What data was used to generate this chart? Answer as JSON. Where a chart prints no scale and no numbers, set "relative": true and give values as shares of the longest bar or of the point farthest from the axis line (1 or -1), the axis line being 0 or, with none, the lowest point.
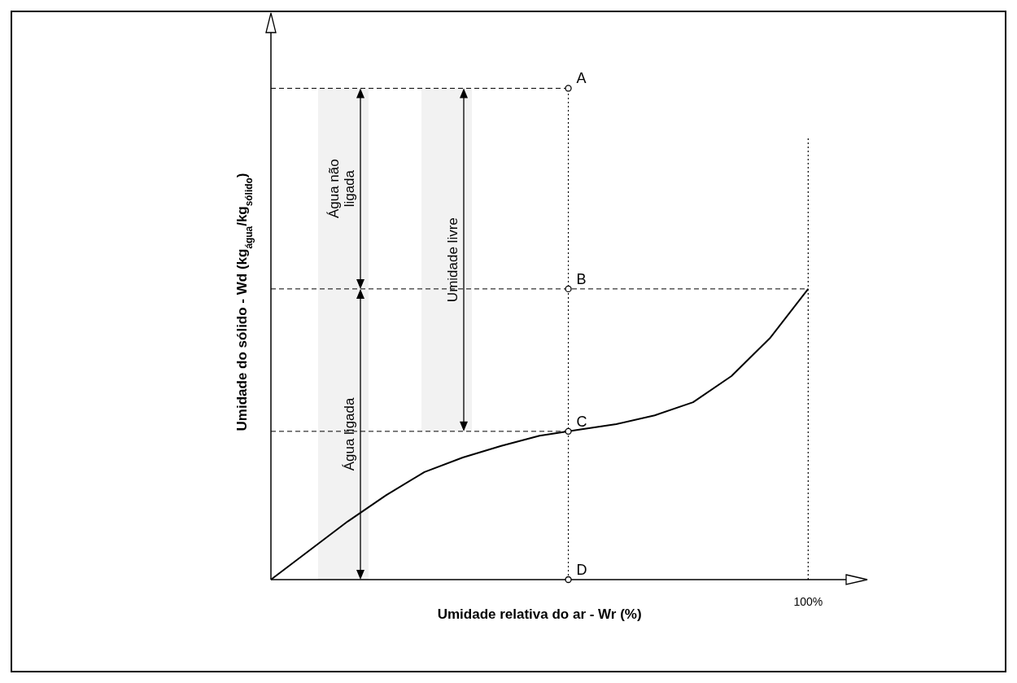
{
  "chart_data": {
    "type": "line",
    "relative": true,
    "xlabel": "Umidade relativa do ar -   Wr  (%)",
    "ylabel": "Umidade do sólido - Wd  (kg$_{água}$/kg$_{sólido}$)",
    "categories": [
      null,
      null,
      null,
      null,
      null,
      null,
      null,
      null,
      null,
      null,
      null,
      null,
      null,
      null,
      null
    ],
    "series": [
      {
        "color": "#000000",
        "line_style": "solid",
        "values": [
          0,
          0.1,
          0.2,
          0.29,
          0.37,
          0.42,
          0.46,
          0.495,
          0.515,
          0.535,
          0.565,
          0.61,
          0.7,
          0.83,
          1
        ]
      }
    ],
    "ref_lines": [
      {
        "axis": "y",
        "value": 1.69,
        "line_style": "dashed"
      },
      {
        "axis": "y",
        "value": 1,
        "line_style": "dashed"
      },
      {
        "axis": "y",
        "value": 0.51,
        "line_style": "dashed"
      }
    ],
    "bands": [
      {
        "axis": "y",
        "from": 1,
        "to": 1.69,
        "label": "Água não ligada",
        "color": "#f2f2f2"
      },
      {
        "axis": "y",
        "from": 0,
        "to": 1,
        "label": "Água ligada",
        "color": "#f2f2f2"
      },
      {
        "axis": "y",
        "from": 0.51,
        "to": 1.69,
        "label": "Umidade livre",
        "color": "#f2f2f2"
      }
    ],
    "annotations": [
      "A",
      {
        "text": "B",
        "y": 1
      },
      {
        "text": "C",
        "y": 0.51
      },
      "D",
      "100%"
    ]
  }
}
